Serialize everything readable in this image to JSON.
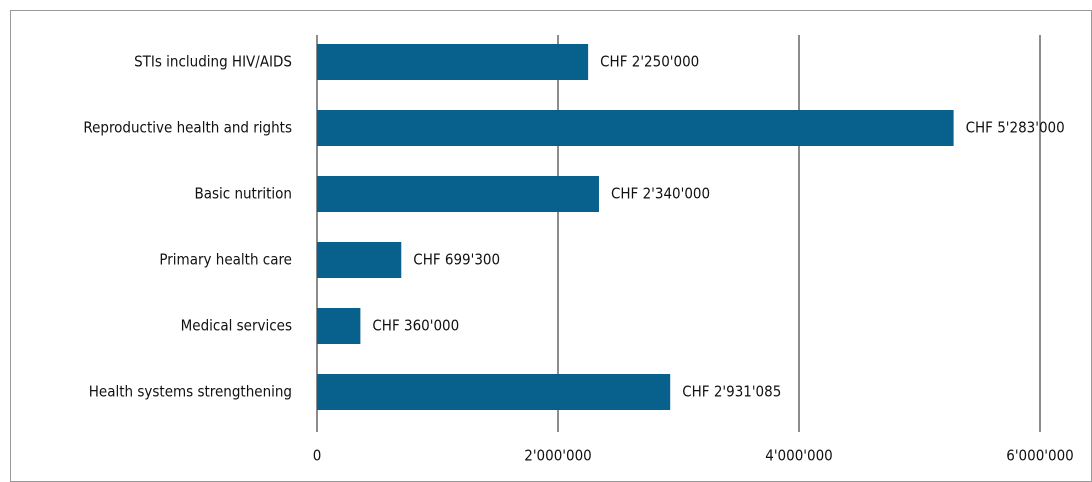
{
  "chart_data": {
    "type": "bar",
    "orientation": "horizontal",
    "categories": [
      "STIs including HIV/AIDS",
      "Reproductive health and rights",
      "Basic nutrition",
      "Primary health care",
      "Medical services",
      "Health systems strengthening"
    ],
    "values": [
      2250000,
      5283000,
      2340000,
      699300,
      360000,
      2931085
    ],
    "value_labels": [
      "CHF 2'250'000",
      "CHF 5'283'000",
      "CHF 2'340'000",
      "CHF 699'300",
      "CHF 360'000",
      "CHF 2'931'085"
    ],
    "color": "#08608c",
    "xlim": [
      0,
      6000000
    ],
    "xticks": [
      0,
      {
        "value": 2000000,
        "label": "2'000'000"
      },
      {
        "value": 4000000,
        "label": "4'000'000"
      },
      {
        "value": 6000000,
        "label": "6'000'000"
      }
    ],
    "grid": true
  }
}
